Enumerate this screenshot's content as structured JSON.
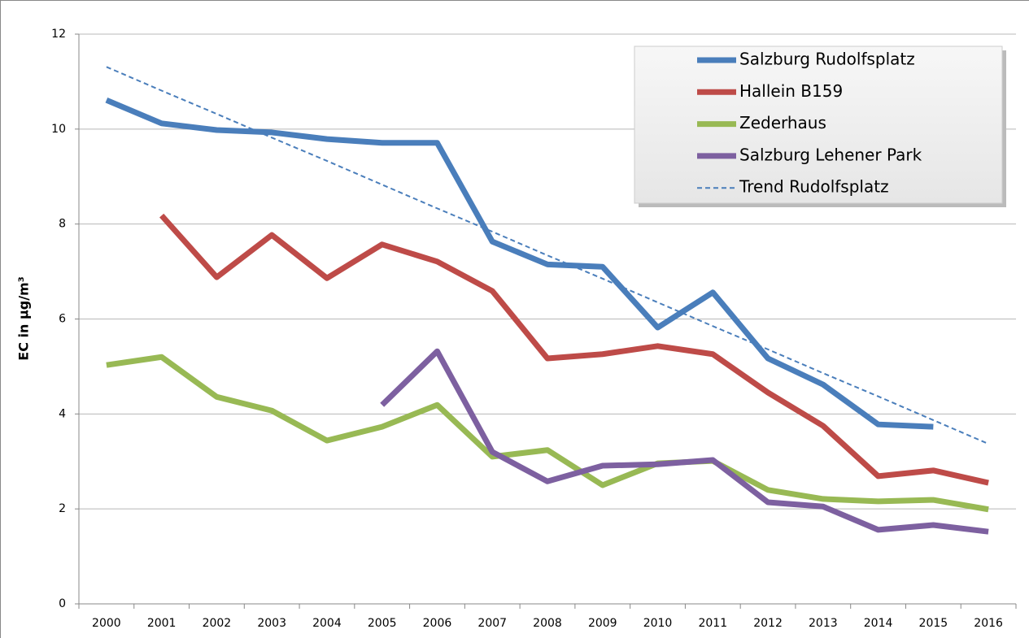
{
  "chart_data": {
    "type": "line",
    "y_label": "EC in µg/m³",
    "categories": [
      "2000",
      "2001",
      "2002",
      "2003",
      "2004",
      "2005",
      "2006",
      "2007",
      "2008",
      "2009",
      "2010",
      "2011",
      "2012",
      "2013",
      "2014",
      "2015",
      "2016"
    ],
    "ylim": [
      0,
      12
    ],
    "yticks": [
      0,
      2,
      4,
      6,
      8,
      10,
      12
    ],
    "grid": true,
    "legend": "top-right",
    "series": [
      {
        "name": "Salzburg Rudolfsplatz",
        "color": "#4a7ebb",
        "values": [
          10.61,
          10.12,
          9.98,
          9.93,
          9.79,
          9.71,
          9.71,
          7.63,
          7.15,
          7.1,
          5.82,
          6.56,
          5.17,
          4.62,
          3.78,
          3.73,
          null
        ]
      },
      {
        "name": "Hallein B159",
        "color": "#be4b48",
        "values": [
          null,
          8.18,
          6.88,
          7.77,
          6.86,
          7.57,
          7.21,
          6.59,
          5.17,
          5.26,
          5.43,
          5.26,
          4.45,
          3.75,
          2.69,
          2.81,
          2.55
        ]
      },
      {
        "name": "Zederhaus",
        "color": "#98b954",
        "values": [
          5.03,
          5.2,
          4.36,
          4.07,
          3.44,
          3.73,
          4.19,
          3.1,
          3.24,
          2.5,
          2.96,
          3.01,
          2.4,
          2.21,
          2.16,
          2.19,
          1.99
        ]
      },
      {
        "name": "Salzburg Lehener Park",
        "color": "#7d60a0",
        "values": [
          null,
          null,
          null,
          null,
          null,
          4.19,
          5.32,
          3.2,
          2.58,
          2.91,
          2.94,
          3.03,
          2.14,
          2.05,
          1.56,
          1.66,
          1.52
        ]
      },
      {
        "name": "Trend Rudolfsplatz",
        "color": "#4a7ebb",
        "dashed": true,
        "values": [
          11.31,
          10.81,
          10.32,
          9.82,
          9.33,
          8.83,
          8.33,
          7.84,
          7.34,
          6.85,
          6.35,
          5.85,
          5.36,
          4.86,
          4.37,
          3.87,
          3.37
        ]
      }
    ]
  }
}
